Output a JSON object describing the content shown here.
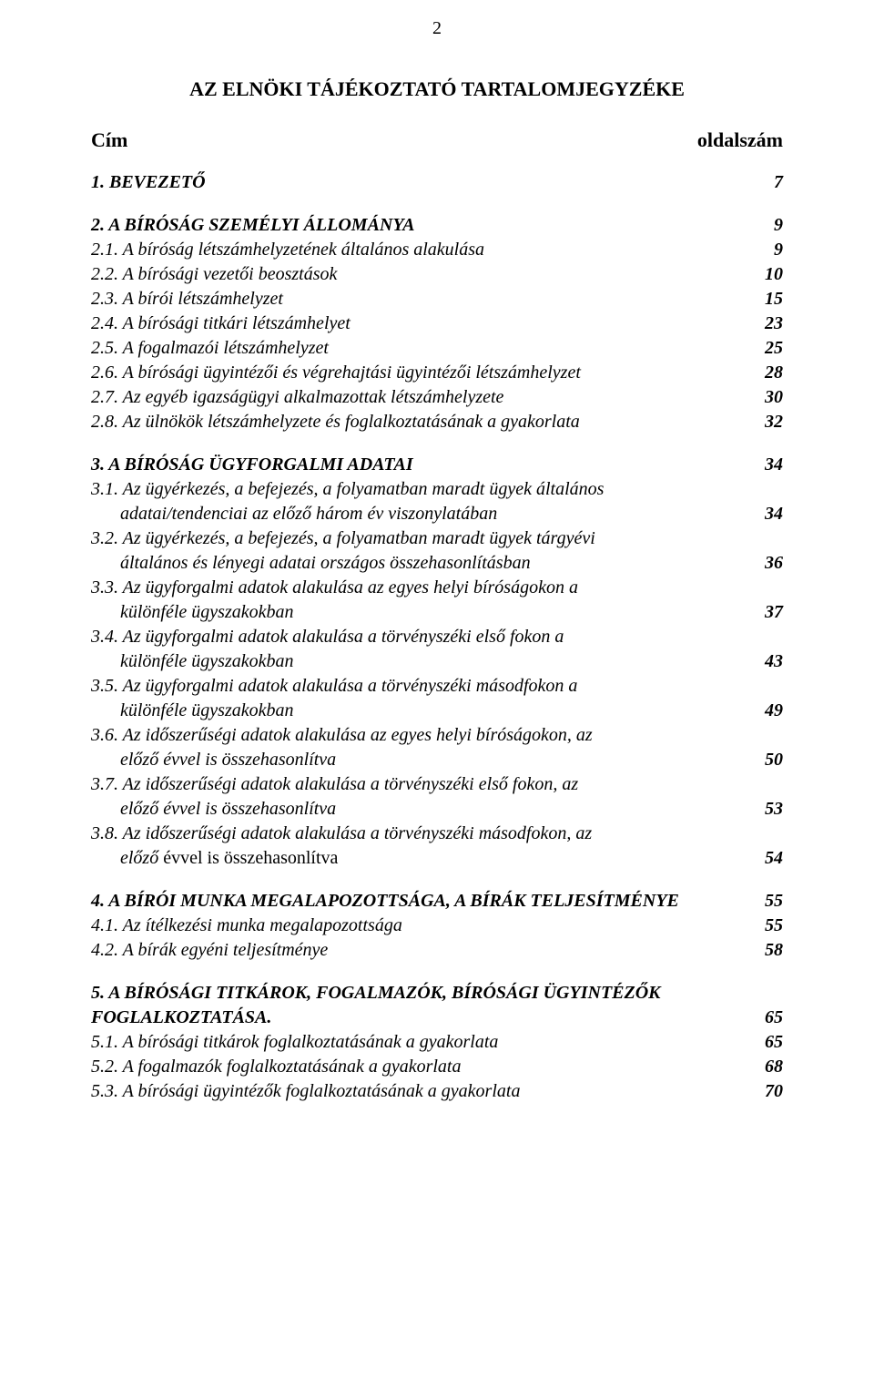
{
  "pageNumber": "2",
  "title": "AZ ELNÖKI TÁJÉKOZTATÓ TARTALOMJEGYZÉKE",
  "header": {
    "left": "Cím",
    "right": "oldalszám"
  },
  "s1": {
    "l1": {
      "t": "1. BEVEZETŐ",
      "p": "7"
    }
  },
  "s2": {
    "l1": {
      "t": "2. A BÍRÓSÁG SZEMÉLYI ÁLLOMÁNYA",
      "p": "9"
    },
    "l2": {
      "t": "2.1. A bíróság létszámhelyzetének általános alakulása",
      "p": "9"
    },
    "l3": {
      "t": "2.2. A bírósági vezetői beosztások",
      "p": "10"
    },
    "l4": {
      "t": "2.3. A bírói létszámhelyzet",
      "p": "15"
    },
    "l5": {
      "t": "2.4. A bírósági titkári létszámhelyet",
      "p": "23"
    },
    "l6": {
      "t": "2.5. A fogalmazói létszámhelyzet",
      "p": "25"
    },
    "l7": {
      "t": "2.6. A bírósági ügyintézői és végrehajtási ügyintézői létszámhelyzet",
      "p": "28"
    },
    "l8": {
      "t": "2.7. Az egyéb igazságügyi alkalmazottak létszámhelyzete",
      "p": "30"
    },
    "l9": {
      "t": "2.8. Az ülnökök létszámhelyzete és foglalkoztatásának a gyakorlata",
      "p": "32"
    }
  },
  "s3": {
    "l1": {
      "t": "3. A BÍRÓSÁG ÜGYFORGALMI ADATAI",
      "p": "34"
    },
    "l2": {
      "t1": "3.1. Az ügyérkezés, a befejezés, a folyamatban maradt ügyek általános",
      "t2": "adatai/tendenciai az előző három év viszonylatában",
      "p": "34"
    },
    "l3": {
      "t1": "3.2. Az ügyérkezés, a befejezés, a folyamatban maradt ügyek tárgyévi",
      "t2": "általános és lényegi adatai országos összehasonlításban",
      "p": "36"
    },
    "l4": {
      "t1": "3.3. Az ügyforgalmi adatok alakulása az egyes helyi bíróságokon a",
      "t2": "különféle ügyszakokban",
      "p": "37"
    },
    "l5": {
      "t1": "3.4. Az ügyforgalmi adatok alakulása a törvényszéki első fokon a",
      "t2": "különféle ügyszakokban",
      "p": "43"
    },
    "l6": {
      "t1": "3.5. Az ügyforgalmi adatok alakulása a törvényszéki másodfokon a",
      "t2": "különféle ügyszakokban",
      "p": "49"
    },
    "l7": {
      "t1": "3.6. Az időszerűségi adatok alakulása az egyes helyi bíróságokon, az",
      "t2": "előző évvel is összehasonlítva",
      "p": "50"
    },
    "l8": {
      "t1": "3.7. Az időszerűségi adatok alakulása a törvényszéki első fokon, az",
      "t2": "előző évvel is összehasonlítva",
      "p": "53"
    },
    "l9": {
      "t1": "3.8. Az időszerűségi adatok alakulása a törvényszéki másodfokon, az",
      "t2a": "előző",
      "t2b": " évvel is összehasonlítva",
      "p": "54"
    }
  },
  "s4": {
    "l1": {
      "t": "4. A BÍRÓI MUNKA MEGALAPOZOTTSÁGA, A BÍRÁK TELJESÍTMÉNYE",
      "p": "55"
    },
    "l2": {
      "t": "4.1. Az ítélkezési munka megalapozottsága",
      "p": "55"
    },
    "l3": {
      "t": "4.2. A bírák egyéni teljesítménye",
      "p": "58"
    }
  },
  "s5": {
    "l1": {
      "t1": "5. A BÍRÓSÁGI TITKÁROK, FOGALMAZÓK, BÍRÓSÁGI ÜGYINTÉZŐK",
      "t2": "FOGLALKOZTATÁSA",
      "p": "65"
    },
    "l2": {
      "t": "5.1. A bírósági titkárok foglalkoztatásának a gyakorlata",
      "p": "65"
    },
    "l3": {
      "t": "5.2. A fogalmazók foglalkoztatásának a gyakorlata",
      "p": "68"
    },
    "l4": {
      "t": "5.3. A bírósági ügyintézők foglalkoztatásának a gyakorlata",
      "p": "70"
    }
  }
}
